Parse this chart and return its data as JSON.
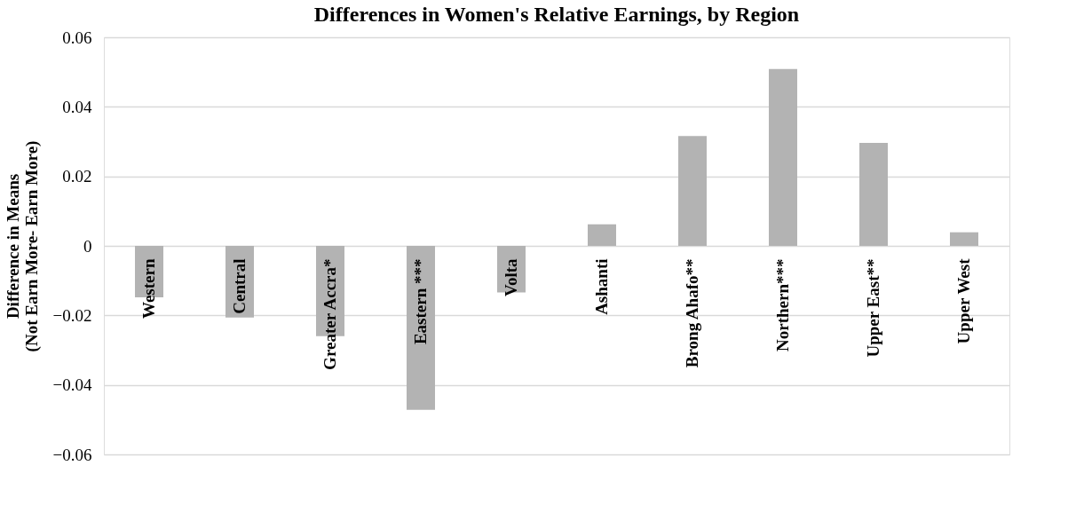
{
  "chart_data": {
    "type": "bar",
    "title": "Differences in Women's Relative Earnings, by Region",
    "ylabel": "Difference in Means\n(Not Earn More- Earn More)",
    "categories": [
      "Western",
      "Central",
      "Greater Accra*",
      "Eastern ***",
      "Volta",
      "Ashanti",
      "Brong Ahafo**",
      "Northern***",
      "Upper East**",
      "Upper West"
    ],
    "values": [
      -0.0148,
      -0.0206,
      -0.026,
      -0.0472,
      -0.0134,
      0.0062,
      0.0316,
      0.0509,
      0.0296,
      0.0039
    ],
    "color": "#b3b3b3",
    "ylim": [
      -0.06,
      0.06
    ],
    "yticks": [
      -0.06,
      -0.04,
      -0.02,
      0,
      0.02,
      0.04,
      0.06
    ],
    "grid": "y"
  }
}
